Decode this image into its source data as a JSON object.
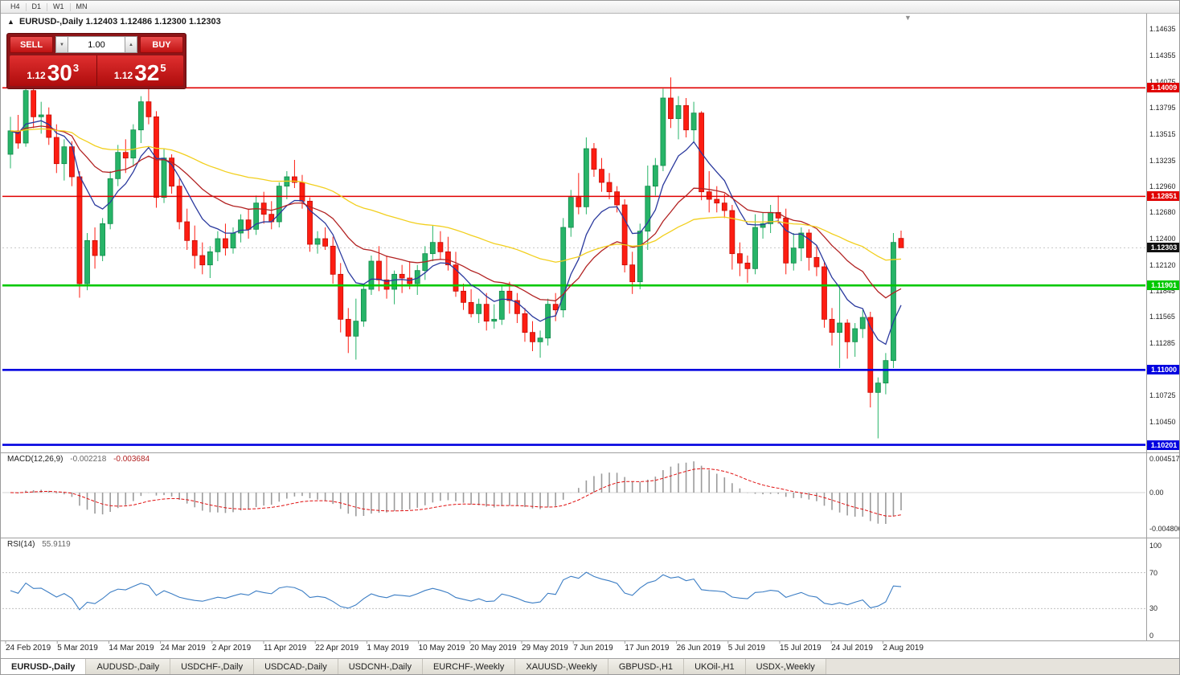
{
  "toolbar": {
    "timeframes": [
      "H4",
      "D1",
      "W1",
      "MN"
    ]
  },
  "icons": {
    "collapse": "▲",
    "shift_marker": "▼",
    "spin_up": "▲",
    "spin_down": "▼"
  },
  "chart_header": {
    "symbol_title": "EURUSD-,Daily",
    "ohlc_text": "1.12403 1.12486 1.12300 1.12303"
  },
  "trade_panel": {
    "sell_label": "SELL",
    "buy_label": "BUY",
    "volume": "1.00",
    "sell_price_small": "1.12",
    "sell_price_big": "30",
    "sell_price_sup": "3",
    "buy_price_small": "1.12",
    "buy_price_big": "32",
    "buy_price_sup": "5"
  },
  "colors": {
    "bull": "#27b468",
    "bull_border": "#128a4a",
    "bear": "#fd1d12",
    "bear_border": "#c30d05",
    "macd_hist": "#9b9b9b",
    "macd_signal": "#e01010",
    "rsi_line": "#3b7dc4",
    "bid_line": "#c8c8c8"
  },
  "current_price": {
    "value": 1.12303,
    "label": "1.12303"
  },
  "hlines": [
    {
      "price": 1.14009,
      "color": "#e00000",
      "width": 1.6
    },
    {
      "price": 1.12851,
      "color": "#e00000",
      "width": 1.6
    },
    {
      "price": 1.11901,
      "color": "#00c800",
      "width": 2.6
    },
    {
      "price": 1.11,
      "color": "#0000e0",
      "width": 2.6
    },
    {
      "price": 1.10201,
      "color": "#0000e0",
      "width": 2.6
    }
  ],
  "price_axis": {
    "ticks": [
      "1.14635",
      "1.14355",
      "1.14075",
      "1.13795",
      "1.13515",
      "1.13235",
      "1.12960",
      "1.12680",
      "1.12400",
      "1.12120",
      "1.11845",
      "1.11565",
      "1.11285",
      "1.10725",
      "1.10450"
    ],
    "tags": [
      {
        "text": "1.14009",
        "price": 1.14009,
        "bg": "#e00000"
      },
      {
        "text": "1.12851",
        "price": 1.12851,
        "bg": "#e00000"
      },
      {
        "text": "1.12303",
        "price": 1.12303,
        "bg": "#111111"
      },
      {
        "text": "1.11901",
        "price": 1.11901,
        "bg": "#00c800"
      },
      {
        "text": "1.11000",
        "price": 1.11,
        "bg": "#0000e0"
      },
      {
        "text": "1.10201",
        "price": 1.10201,
        "bg": "#0000e0"
      }
    ]
  },
  "chart_data": {
    "type": "candlestick",
    "symbol": "EURUSD-",
    "timeframe": "Daily",
    "ylim": [
      1.1012,
      1.148
    ],
    "x_labels": [
      "24 Feb 2019",
      "5 Mar 2019",
      "14 Mar 2019",
      "24 Mar 2019",
      "2 Apr 2019",
      "11 Apr 2019",
      "22 Apr 2019",
      "1 May 2019",
      "10 May 2019",
      "20 May 2019",
      "29 May 2019",
      "7 Jun 2019",
      "17 Jun 2019",
      "26 Jun 2019",
      "5 Jul 2019",
      "15 Jul 2019",
      "24 Jul 2019",
      "2 Aug 2019"
    ],
    "moving_averages": [
      {
        "type": "EMA",
        "period": 8,
        "color": "#2b3a9e"
      },
      {
        "type": "EMA",
        "period": 21,
        "color": "#b22222"
      },
      {
        "type": "EMA",
        "period": 55,
        "color": "#f2cf1d"
      }
    ],
    "indicators": {
      "macd": {
        "label": "MACD(12,26,9)",
        "value_main": "-0.002218",
        "value_signal": "-0.003684",
        "fast": 12,
        "slow": 26,
        "signal": 9,
        "axis_labels": [
          "0.004517",
          "0.00",
          "-0.004806"
        ]
      },
      "rsi": {
        "label": "RSI(14)",
        "value": "55.9119",
        "period": 14,
        "axis_labels": [
          "100",
          "70",
          "30",
          "0"
        ],
        "levels": [
          70,
          30
        ]
      }
    },
    "candles": [
      [
        1.133,
        1.137,
        1.1315,
        1.1355
      ],
      [
        1.1355,
        1.1372,
        1.1336,
        1.1342
      ],
      [
        1.1342,
        1.1405,
        1.1338,
        1.1398
      ],
      [
        1.1398,
        1.1403,
        1.1358,
        1.137
      ],
      [
        1.137,
        1.1386,
        1.1352,
        1.1372
      ],
      [
        1.1372,
        1.138,
        1.134,
        1.1348
      ],
      [
        1.1348,
        1.1362,
        1.131,
        1.132
      ],
      [
        1.132,
        1.1346,
        1.1302,
        1.1338
      ],
      [
        1.1338,
        1.1344,
        1.1296,
        1.1306
      ],
      [
        1.1306,
        1.1312,
        1.1177,
        1.1192
      ],
      [
        1.1192,
        1.1246,
        1.1185,
        1.1238
      ],
      [
        1.1238,
        1.1252,
        1.1208,
        1.1222
      ],
      [
        1.1222,
        1.1262,
        1.1216,
        1.1256
      ],
      [
        1.1256,
        1.1312,
        1.125,
        1.1304
      ],
      [
        1.1304,
        1.134,
        1.1296,
        1.1332
      ],
      [
        1.1332,
        1.1346,
        1.131,
        1.1326
      ],
      [
        1.1326,
        1.1362,
        1.1318,
        1.1356
      ],
      [
        1.1356,
        1.1392,
        1.1342,
        1.1386
      ],
      [
        1.1386,
        1.1408,
        1.1362,
        1.137
      ],
      [
        1.137,
        1.1376,
        1.1273,
        1.1284
      ],
      [
        1.1284,
        1.1336,
        1.1278,
        1.1326
      ],
      [
        1.1326,
        1.133,
        1.1288,
        1.1296
      ],
      [
        1.1296,
        1.1304,
        1.125,
        1.1258
      ],
      [
        1.1258,
        1.1272,
        1.1228,
        1.1238
      ],
      [
        1.1238,
        1.1254,
        1.1208,
        1.1222
      ],
      [
        1.1222,
        1.1236,
        1.1202,
        1.1212
      ],
      [
        1.1212,
        1.1232,
        1.1198,
        1.1226
      ],
      [
        1.1226,
        1.1248,
        1.1216,
        1.124
      ],
      [
        1.124,
        1.1256,
        1.1222,
        1.123
      ],
      [
        1.123,
        1.1252,
        1.1224,
        1.1246
      ],
      [
        1.1246,
        1.1266,
        1.1236,
        1.126
      ],
      [
        1.126,
        1.1272,
        1.124,
        1.125
      ],
      [
        1.125,
        1.1286,
        1.1244,
        1.1278
      ],
      [
        1.1278,
        1.129,
        1.1256,
        1.1266
      ],
      [
        1.1266,
        1.128,
        1.125,
        1.1258
      ],
      [
        1.1258,
        1.13,
        1.1252,
        1.1296
      ],
      [
        1.1296,
        1.1312,
        1.1282,
        1.1306
      ],
      [
        1.1306,
        1.1324,
        1.1294,
        1.13
      ],
      [
        1.13,
        1.1308,
        1.1272,
        1.128
      ],
      [
        1.128,
        1.1284,
        1.1226,
        1.1234
      ],
      [
        1.1234,
        1.1248,
        1.1224,
        1.124
      ],
      [
        1.124,
        1.1252,
        1.1228,
        1.1232
      ],
      [
        1.1232,
        1.1242,
        1.1192,
        1.1202
      ],
      [
        1.1202,
        1.1214,
        1.114,
        1.1154
      ],
      [
        1.1154,
        1.1166,
        1.1118,
        1.1136
      ],
      [
        1.1136,
        1.1176,
        1.1111,
        1.1152
      ],
      [
        1.1152,
        1.1192,
        1.1146,
        1.1186
      ],
      [
        1.1186,
        1.1222,
        1.118,
        1.1216
      ],
      [
        1.1216,
        1.1232,
        1.1184,
        1.1196
      ],
      [
        1.1196,
        1.1222,
        1.1176,
        1.1186
      ],
      [
        1.1186,
        1.1206,
        1.117,
        1.1202
      ],
      [
        1.1202,
        1.1212,
        1.1182,
        1.1198
      ],
      [
        1.1198,
        1.1216,
        1.1186,
        1.1192
      ],
      [
        1.1192,
        1.1212,
        1.118,
        1.1206
      ],
      [
        1.1206,
        1.1232,
        1.1196,
        1.1224
      ],
      [
        1.1224,
        1.1254,
        1.1216,
        1.1236
      ],
      [
        1.1236,
        1.1248,
        1.1218,
        1.1226
      ],
      [
        1.1226,
        1.1242,
        1.1206,
        1.1212
      ],
      [
        1.1212,
        1.1226,
        1.1178,
        1.1184
      ],
      [
        1.1184,
        1.1192,
        1.1164,
        1.1172
      ],
      [
        1.1172,
        1.1186,
        1.1156,
        1.116
      ],
      [
        1.116,
        1.1176,
        1.115,
        1.117
      ],
      [
        1.117,
        1.1182,
        1.1142,
        1.1152
      ],
      [
        1.1152,
        1.117,
        1.1144,
        1.1154
      ],
      [
        1.1154,
        1.119,
        1.1148,
        1.1184
      ],
      [
        1.1184,
        1.1194,
        1.116,
        1.1174
      ],
      [
        1.1174,
        1.1182,
        1.115,
        1.116
      ],
      [
        1.116,
        1.1166,
        1.113,
        1.114
      ],
      [
        1.114,
        1.1152,
        1.112,
        1.113
      ],
      [
        1.113,
        1.1142,
        1.1113,
        1.1134
      ],
      [
        1.1134,
        1.1176,
        1.1126,
        1.117
      ],
      [
        1.117,
        1.1182,
        1.1152,
        1.1164
      ],
      [
        1.1164,
        1.1262,
        1.1156,
        1.1252
      ],
      [
        1.1252,
        1.1292,
        1.1242,
        1.1284
      ],
      [
        1.1284,
        1.131,
        1.1266,
        1.1274
      ],
      [
        1.1274,
        1.1348,
        1.1266,
        1.1336
      ],
      [
        1.1336,
        1.1342,
        1.1306,
        1.1314
      ],
      [
        1.1314,
        1.1326,
        1.129,
        1.13
      ],
      [
        1.13,
        1.131,
        1.1282,
        1.129
      ],
      [
        1.129,
        1.1296,
        1.1268,
        1.1276
      ],
      [
        1.1276,
        1.1282,
        1.1204,
        1.1212
      ],
      [
        1.1212,
        1.1226,
        1.1181,
        1.1194
      ],
      [
        1.1194,
        1.1256,
        1.1186,
        1.1248
      ],
      [
        1.1248,
        1.1318,
        1.1228,
        1.1296
      ],
      [
        1.1296,
        1.1326,
        1.1286,
        1.1318
      ],
      [
        1.1318,
        1.14,
        1.1312,
        1.139
      ],
      [
        1.139,
        1.1412,
        1.1358,
        1.1368
      ],
      [
        1.1368,
        1.1392,
        1.1346,
        1.1382
      ],
      [
        1.1382,
        1.139,
        1.1348,
        1.1356
      ],
      [
        1.1356,
        1.1386,
        1.1342,
        1.1374
      ],
      [
        1.1374,
        1.1376,
        1.1281,
        1.129
      ],
      [
        1.129,
        1.1312,
        1.1268,
        1.1282
      ],
      [
        1.1282,
        1.1296,
        1.1268,
        1.1278
      ],
      [
        1.1278,
        1.1288,
        1.1262,
        1.127
      ],
      [
        1.127,
        1.1276,
        1.1207,
        1.1224
      ],
      [
        1.1224,
        1.1236,
        1.12,
        1.1214
      ],
      [
        1.1214,
        1.1222,
        1.1193,
        1.1208
      ],
      [
        1.1208,
        1.1266,
        1.1202,
        1.1252
      ],
      [
        1.1252,
        1.1268,
        1.124,
        1.1256
      ],
      [
        1.1256,
        1.1276,
        1.1246,
        1.1268
      ],
      [
        1.1268,
        1.1286,
        1.1256,
        1.1262
      ],
      [
        1.1262,
        1.1272,
        1.1202,
        1.1214
      ],
      [
        1.1214,
        1.1246,
        1.1206,
        1.123
      ],
      [
        1.123,
        1.1252,
        1.1216,
        1.1246
      ],
      [
        1.1246,
        1.125,
        1.1206,
        1.122
      ],
      [
        1.122,
        1.1232,
        1.12,
        1.121
      ],
      [
        1.121,
        1.1216,
        1.1145,
        1.1154
      ],
      [
        1.1154,
        1.1166,
        1.1126,
        1.114
      ],
      [
        1.114,
        1.1188,
        1.1102,
        1.115
      ],
      [
        1.115,
        1.1154,
        1.1112,
        1.113
      ],
      [
        1.113,
        1.115,
        1.1114,
        1.1144
      ],
      [
        1.1144,
        1.1164,
        1.1134,
        1.1156
      ],
      [
        1.1156,
        1.1162,
        1.106,
        1.1076
      ],
      [
        1.1076,
        1.1092,
        1.1027,
        1.1086
      ],
      [
        1.1086,
        1.1118,
        1.1074,
        1.111
      ],
      [
        1.111,
        1.1246,
        1.1102,
        1.1236
      ],
      [
        1.12403,
        1.12486,
        1.123,
        1.12303
      ]
    ]
  },
  "tabs": [
    {
      "label": "EURUSD-,Daily",
      "active": true
    },
    {
      "label": "AUDUSD-,Daily",
      "active": false
    },
    {
      "label": "USDCHF-,Daily",
      "active": false
    },
    {
      "label": "USDCAD-,Daily",
      "active": false
    },
    {
      "label": "USDCNH-,Daily",
      "active": false
    },
    {
      "label": "EURCHF-,Weekly",
      "active": false
    },
    {
      "label": "XAUUSD-,Weekly",
      "active": false
    },
    {
      "label": "GBPUSD-,H1",
      "active": false
    },
    {
      "label": "UKOil-,H1",
      "active": false
    },
    {
      "label": "USDX-,Weekly",
      "active": false
    }
  ]
}
